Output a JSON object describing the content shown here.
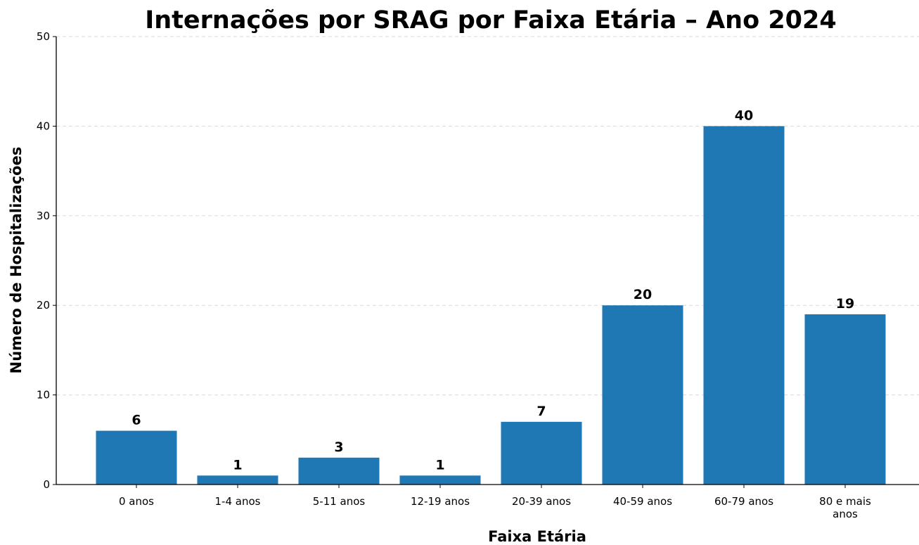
{
  "chart_data": {
    "type": "bar",
    "title": "Internações por SRAG por Faixa Etária – Ano 2024",
    "x_label": "Faixa Etária",
    "y_label": "Número de Hospitalizações",
    "categories": [
      "0 anos",
      "1-4 anos",
      "5-11 anos",
      "12-19 anos",
      "20-39 anos",
      "40-59 anos",
      "60-79 anos",
      "80 e mais anos"
    ],
    "values": [
      6,
      1,
      3,
      1,
      7,
      20,
      40,
      19
    ],
    "color": "#1f77b4",
    "ylim": [
      0,
      50
    ],
    "yticks": [
      0,
      10,
      20,
      30,
      40,
      50
    ],
    "grid": true
  }
}
